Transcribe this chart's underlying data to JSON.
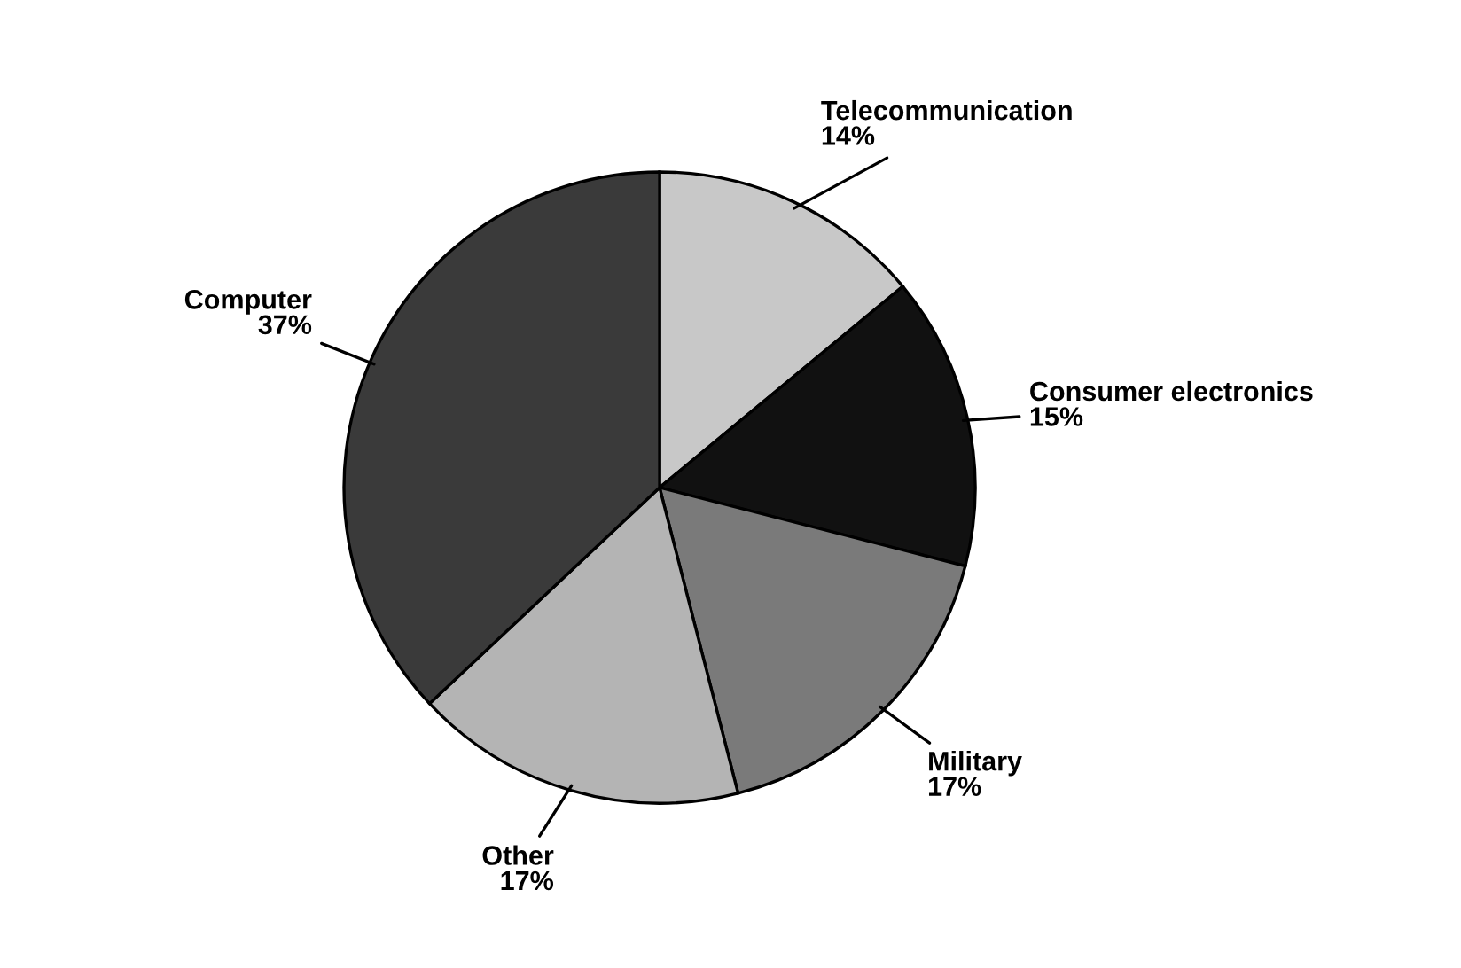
{
  "chart_data": {
    "type": "pie",
    "categories": [
      "Telecommunication",
      "Consumer electronics",
      "Military",
      "Other",
      "Computer"
    ],
    "values": [
      14,
      15,
      17,
      17,
      37
    ],
    "value_labels": [
      "14%",
      "15%",
      "17%",
      "17%",
      "37%"
    ],
    "colors": [
      "#c8c8c8",
      "#111111",
      "#7a7a7a",
      "#b4b4b4",
      "#3a3a3a"
    ],
    "legend": false
  }
}
